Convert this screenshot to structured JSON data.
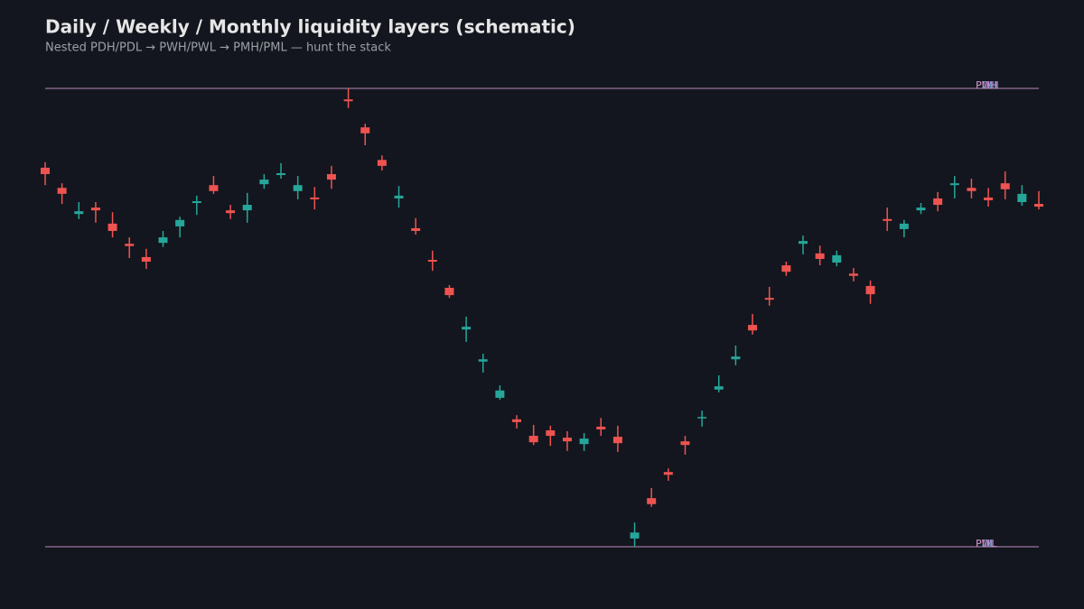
{
  "chart_data": {
    "type": "candlestick",
    "title": "Daily / Weekly / Monthly liquidity layers (schematic)",
    "subtitle": "Nested PDH/PDL → PWH/PWL → PMH/PML — hunt the stack",
    "ylim": [
      -10,
      110
    ],
    "up_color": "#26a69a",
    "down_color": "#ef5350",
    "open": [
      82.7,
      78.3,
      72.6,
      74.0,
      70.5,
      66.1,
      63.2,
      66.3,
      69.9,
      75.0,
      78.9,
      73.4,
      73.4,
      79.1,
      81.1,
      77.6,
      76.2,
      81.3,
      97.6,
      91.5,
      84.4,
      76.0,
      69.5,
      62.6,
      56.5,
      47.4,
      40.4,
      32.5,
      27.8,
      24.2,
      25.4,
      23.8,
      22.4,
      26.2,
      24.0,
      1.8,
      10.6,
      16.3,
      23.0,
      28.0,
      34.3,
      40.9,
      48.4,
      54.3,
      61.4,
      66.1,
      64.0,
      62.0,
      59.6,
      56.9,
      71.5,
      69.3,
      73.4,
      76.0,
      78.9,
      78.3,
      76.2,
      79.3,
      75.2,
      74.8
    ],
    "high": [
      83.9,
      79.3,
      75.2,
      75.2,
      73.0,
      67.5,
      65.0,
      68.9,
      72.0,
      76.6,
      80.9,
      74.6,
      77.2,
      81.3,
      83.7,
      80.9,
      78.5,
      83.1,
      100.0,
      92.3,
      85.4,
      78.7,
      71.7,
      64.6,
      57.1,
      50.2,
      42.1,
      35.2,
      28.7,
      26.6,
      26.4,
      25.2,
      24.8,
      28.1,
      26.4,
      5.3,
      12.8,
      17.1,
      24.2,
      29.7,
      37.4,
      43.9,
      50.8,
      56.7,
      62.2,
      67.9,
      65.7,
      64.6,
      60.8,
      58.1,
      74.0,
      71.3,
      75.0,
      77.4,
      80.9,
      80.3,
      78.3,
      81.9,
      78.9,
      77.6
    ],
    "low": [
      78.9,
      74.8,
      71.5,
      70.7,
      67.5,
      63.0,
      60.6,
      65.4,
      67.5,
      72.4,
      77.0,
      71.5,
      70.7,
      78.1,
      80.3,
      75.8,
      73.6,
      78.1,
      95.7,
      87.6,
      82.1,
      74.0,
      68.1,
      60.2,
      54.3,
      44.7,
      38.0,
      32.1,
      25.8,
      22.2,
      22.0,
      20.9,
      20.9,
      24.2,
      20.7,
      0.0,
      8.7,
      14.4,
      20.1,
      26.2,
      33.7,
      39.6,
      46.3,
      52.6,
      59.1,
      63.8,
      61.4,
      61.2,
      57.9,
      53.0,
      68.9,
      67.5,
      72.6,
      73.2,
      76.0,
      76.0,
      74.2,
      75.8,
      74.4,
      73.6
    ],
    "close": [
      81.3,
      77.0,
      73.2,
      73.4,
      68.9,
      65.6,
      62.2,
      67.5,
      71.3,
      75.4,
      77.6,
      72.8,
      74.6,
      80.1,
      81.5,
      78.9,
      75.8,
      80.1,
      97.2,
      90.2,
      83.1,
      76.6,
      68.9,
      62.2,
      54.9,
      48.0,
      40.9,
      34.1,
      27.2,
      22.8,
      24.2,
      23.0,
      23.6,
      25.6,
      22.6,
      3.1,
      9.3,
      15.7,
      22.2,
      28.3,
      35.0,
      41.5,
      47.2,
      53.9,
      60.0,
      66.7,
      62.8,
      63.6,
      59.1,
      55.1,
      71.1,
      70.5,
      74.0,
      74.6,
      79.3,
      77.6,
      75.6,
      78.0,
      77.0,
      74.2
    ],
    "levels": [
      {
        "name": "PDH",
        "value": 100,
        "color": "#5b9bd5"
      },
      {
        "name": "PWH",
        "value": 100,
        "color": "#9b8bd6"
      },
      {
        "name": "PMH",
        "value": 100,
        "color": "#c58bb8"
      },
      {
        "name": "PDL",
        "value": 0,
        "color": "#5b9bd5"
      },
      {
        "name": "PWL",
        "value": 0,
        "color": "#9b8bd6"
      },
      {
        "name": "PML",
        "value": 0,
        "color": "#c58bb8"
      }
    ]
  }
}
